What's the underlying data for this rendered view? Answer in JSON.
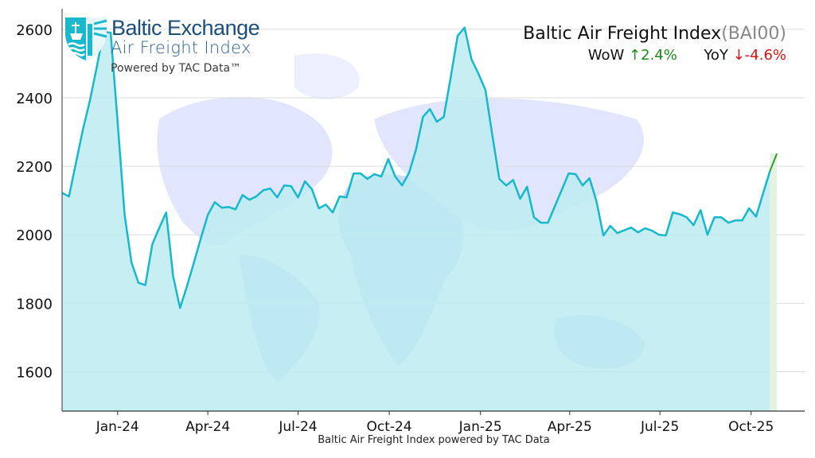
{
  "logo": {
    "line1": "Baltic Exchange",
    "line2": "Air Freight Index",
    "line3": "Powered by TAC Data™"
  },
  "header": {
    "title": "Baltic Air Freight Index",
    "code": "(BAI00)",
    "wow_label": "WoW",
    "wow_value": "↑2.4%",
    "yoy_label": "YoY",
    "yoy_value": "↓-4.6%"
  },
  "footer": "Baltic Air Freight Index powered by TAC Data",
  "colors": {
    "line": "#16b8cc",
    "fill": "#bdebf1",
    "latest_segment": "#3a9a2a",
    "latest_band": "#e4f2e0",
    "up": "#1a8a1a",
    "down": "#e01010",
    "logo": "#1b4f7a"
  },
  "chart_data": {
    "type": "area",
    "title": "Baltic Air Freight Index(BAI00)",
    "xlabel": "Baltic Air Freight Index powered by TAC Data",
    "ylabel": "",
    "xlim": [
      "2023-11-06",
      "2025-11-24"
    ],
    "ylim": [
      1485,
      2660
    ],
    "grid": "horizontal",
    "background": "world map",
    "yticks": [
      1600,
      1800,
      2000,
      2200,
      2400,
      2600
    ],
    "xticks": [
      {
        "date": "2024-01-01",
        "label": "Jan-24"
      },
      {
        "date": "2024-04-01",
        "label": "Apr-24"
      },
      {
        "date": "2024-07-01",
        "label": "Jul-24"
      },
      {
        "date": "2024-10-01",
        "label": "Oct-24"
      },
      {
        "date": "2025-01-01",
        "label": "Jan-25"
      },
      {
        "date": "2025-04-01",
        "label": "Apr-25"
      },
      {
        "date": "2025-07-01",
        "label": "Jul-25"
      },
      {
        "date": "2025-10-01",
        "label": "Oct-25"
      }
    ],
    "x": [
      "2023-11-06",
      "2023-11-13",
      "2023-11-20",
      "2023-11-27",
      "2023-12-04",
      "2023-12-11",
      "2023-12-18",
      "2023-12-25",
      "2024-01-01",
      "2024-01-08",
      "2024-01-15",
      "2024-01-22",
      "2024-01-29",
      "2024-02-05",
      "2024-02-12",
      "2024-02-19",
      "2024-02-26",
      "2024-03-04",
      "2024-03-11",
      "2024-03-18",
      "2024-03-25",
      "2024-04-01",
      "2024-04-08",
      "2024-04-15",
      "2024-04-22",
      "2024-04-29",
      "2024-05-06",
      "2024-05-13",
      "2024-05-20",
      "2024-05-27",
      "2024-06-03",
      "2024-06-10",
      "2024-06-17",
      "2024-06-24",
      "2024-07-01",
      "2024-07-08",
      "2024-07-15",
      "2024-07-22",
      "2024-07-29",
      "2024-08-05",
      "2024-08-12",
      "2024-08-19",
      "2024-08-26",
      "2024-09-02",
      "2024-09-09",
      "2024-09-16",
      "2024-09-23",
      "2024-09-30",
      "2024-10-07",
      "2024-10-14",
      "2024-10-21",
      "2024-10-28",
      "2024-11-04",
      "2024-11-11",
      "2024-11-18",
      "2024-11-25",
      "2024-12-02",
      "2024-12-09",
      "2024-12-16",
      "2024-12-23",
      "2024-12-30",
      "2025-01-06",
      "2025-01-13",
      "2025-01-20",
      "2025-01-27",
      "2025-02-03",
      "2025-02-10",
      "2025-02-17",
      "2025-02-24",
      "2025-03-03",
      "2025-03-10",
      "2025-03-17",
      "2025-03-24",
      "2025-03-31",
      "2025-04-07",
      "2025-04-14",
      "2025-04-21",
      "2025-04-28",
      "2025-05-05",
      "2025-05-12",
      "2025-05-19",
      "2025-05-26",
      "2025-06-02",
      "2025-06-09",
      "2025-06-16",
      "2025-06-23",
      "2025-06-30",
      "2025-07-07",
      "2025-07-14",
      "2025-07-21",
      "2025-07-28",
      "2025-08-04",
      "2025-08-11",
      "2025-08-18",
      "2025-08-25",
      "2025-09-01",
      "2025-09-08",
      "2025-09-15",
      "2025-09-22",
      "2025-09-29",
      "2025-10-06",
      "2025-10-13",
      "2025-10-20",
      "2025-10-27"
    ],
    "series": [
      {
        "values": [
          2122,
          2112,
          2210,
          2307,
          2391,
          2490,
          2593,
          2590,
          2330,
          2060,
          1919,
          1860,
          1853,
          1972,
          2020,
          2065,
          1879,
          1786,
          1850,
          1919,
          1990,
          2058,
          2095,
          2079,
          2081,
          2074,
          2116,
          2102,
          2112,
          2130,
          2135,
          2109,
          2144,
          2142,
          2109,
          2156,
          2133,
          2077,
          2088,
          2065,
          2112,
          2109,
          2179,
          2179,
          2163,
          2177,
          2170,
          2221,
          2170,
          2144,
          2181,
          2249,
          2344,
          2367,
          2330,
          2344,
          2460,
          2581,
          2605,
          2512,
          2470,
          2423,
          2290,
          2163,
          2144,
          2160,
          2105,
          2140,
          2051,
          2035,
          2035,
          2083,
          2131,
          2179,
          2177,
          2144,
          2165,
          2098,
          1998,
          2026,
          2005,
          2013,
          2021,
          2007,
          2019,
          2012,
          2000,
          1998,
          2065,
          2060,
          2051,
          2028,
          2072,
          2000,
          2051,
          2051,
          2035,
          2042,
          2042,
          2077,
          2053,
          2120,
          2186,
          2237
        ]
      }
    ]
  }
}
